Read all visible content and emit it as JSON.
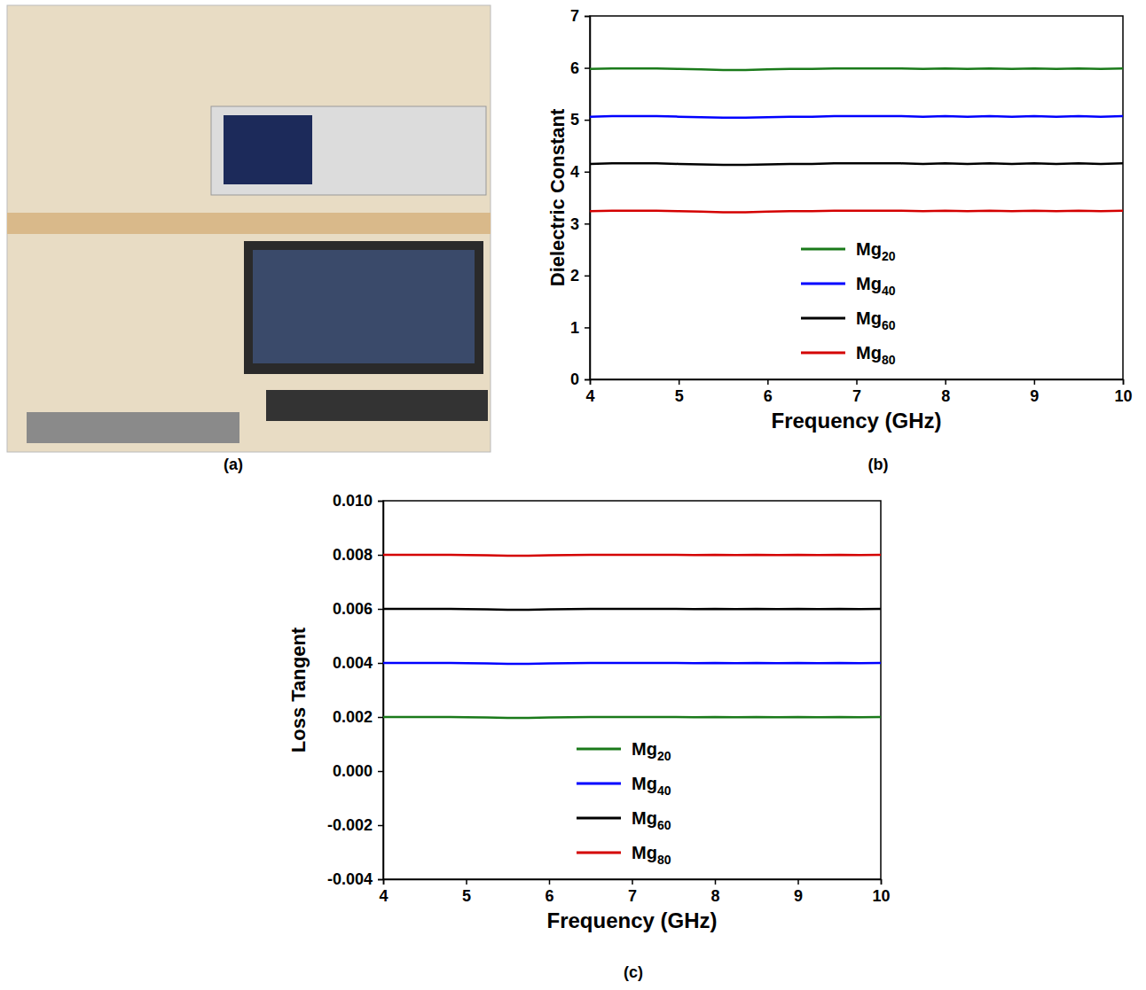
{
  "image": {
    "label": "(a)"
  },
  "chart_data": [
    {
      "type": "line",
      "title": "(b)",
      "x_label": "Frequency (GHz)",
      "y_label": "Dielectric Constant",
      "x": [
        4,
        4.25,
        4.5,
        4.75,
        5,
        5.25,
        5.5,
        5.75,
        6,
        6.25,
        6.5,
        6.75,
        7,
        7.25,
        7.5,
        7.75,
        8,
        8.25,
        8.5,
        8.75,
        9,
        9.25,
        9.5,
        9.75,
        10
      ],
      "series": [
        {
          "name": "Mg20",
          "color": "#1a7a1a",
          "values": [
            5.98,
            5.99,
            5.99,
            5.99,
            5.98,
            5.97,
            5.96,
            5.96,
            5.97,
            5.98,
            5.98,
            5.99,
            5.99,
            5.99,
            5.99,
            5.98,
            5.99,
            5.98,
            5.99,
            5.98,
            5.99,
            5.98,
            5.99,
            5.98,
            5.99
          ]
        },
        {
          "name": "Mg40",
          "color": "#0000ff",
          "values": [
            5.06,
            5.07,
            5.07,
            5.07,
            5.06,
            5.05,
            5.04,
            5.04,
            5.05,
            5.06,
            5.06,
            5.07,
            5.07,
            5.07,
            5.07,
            5.06,
            5.07,
            5.06,
            5.07,
            5.06,
            5.07,
            5.06,
            5.07,
            5.06,
            5.07
          ]
        },
        {
          "name": "Mg60",
          "color": "#000000",
          "values": [
            4.15,
            4.16,
            4.16,
            4.16,
            4.15,
            4.14,
            4.13,
            4.13,
            4.14,
            4.15,
            4.15,
            4.16,
            4.16,
            4.16,
            4.16,
            4.15,
            4.16,
            4.15,
            4.16,
            4.15,
            4.16,
            4.15,
            4.16,
            4.15,
            4.16
          ]
        },
        {
          "name": "Mg80",
          "color": "#d40000",
          "values": [
            3.24,
            3.25,
            3.25,
            3.25,
            3.24,
            3.23,
            3.22,
            3.22,
            3.23,
            3.24,
            3.24,
            3.25,
            3.25,
            3.25,
            3.25,
            3.24,
            3.25,
            3.24,
            3.25,
            3.24,
            3.25,
            3.24,
            3.25,
            3.24,
            3.25
          ]
        }
      ],
      "xlim": [
        4,
        10
      ],
      "xticks": [
        4,
        5,
        6,
        7,
        8,
        9,
        10
      ],
      "ylim": [
        0,
        7
      ],
      "yticks": [
        0,
        1,
        2,
        3,
        4,
        5,
        6,
        7
      ],
      "legend": "lower center"
    },
    {
      "type": "line",
      "title": "(c)",
      "x_label": "Frequency (GHz)",
      "y_label": "Loss Tangent",
      "x": [
        4,
        4.25,
        4.5,
        4.75,
        5,
        5.25,
        5.5,
        5.75,
        6,
        6.25,
        6.5,
        6.75,
        7,
        7.25,
        7.5,
        7.75,
        8,
        8.25,
        8.5,
        8.75,
        9,
        9.25,
        9.5,
        9.75,
        10
      ],
      "series": [
        {
          "name": "Mg20",
          "color": "#1a7a1a",
          "values": [
            0.002,
            0.002,
            0.002,
            0.002,
            0.00199,
            0.00198,
            0.00197,
            0.00197,
            0.00198,
            0.00199,
            0.002,
            0.002,
            0.002,
            0.002,
            0.002,
            0.00199,
            0.002,
            0.00199,
            0.002,
            0.00199,
            0.002,
            0.00199,
            0.002,
            0.00199,
            0.002
          ]
        },
        {
          "name": "Mg40",
          "color": "#0000ff",
          "values": [
            0.004,
            0.004,
            0.004,
            0.004,
            0.00399,
            0.00398,
            0.00397,
            0.00397,
            0.00398,
            0.00399,
            0.004,
            0.004,
            0.004,
            0.004,
            0.004,
            0.00399,
            0.004,
            0.00399,
            0.004,
            0.00399,
            0.004,
            0.00399,
            0.004,
            0.00399,
            0.004
          ]
        },
        {
          "name": "Mg60",
          "color": "#000000",
          "values": [
            0.006,
            0.006,
            0.006,
            0.006,
            0.00599,
            0.00598,
            0.00597,
            0.00597,
            0.00598,
            0.00599,
            0.006,
            0.006,
            0.006,
            0.006,
            0.006,
            0.00599,
            0.006,
            0.00599,
            0.006,
            0.00599,
            0.006,
            0.00599,
            0.006,
            0.00599,
            0.006
          ]
        },
        {
          "name": "Mg80",
          "color": "#d40000",
          "values": [
            0.008,
            0.008,
            0.008,
            0.008,
            0.00799,
            0.00798,
            0.00797,
            0.00797,
            0.00798,
            0.00799,
            0.008,
            0.008,
            0.008,
            0.008,
            0.008,
            0.00799,
            0.008,
            0.00799,
            0.008,
            0.00799,
            0.008,
            0.00799,
            0.008,
            0.00799,
            0.008
          ]
        }
      ],
      "xlim": [
        4,
        10
      ],
      "xticks": [
        4,
        5,
        6,
        7,
        8,
        9,
        10
      ],
      "ylim": [
        -0.004,
        0.01
      ],
      "yticks": [
        -0.004,
        -0.002,
        {
          "value": 0,
          "label": "0.000"
        },
        0.002,
        0.004,
        0.006,
        0.008,
        {
          "value": 0.01,
          "label": "0.010"
        }
      ],
      "legend": "lower center"
    }
  ]
}
